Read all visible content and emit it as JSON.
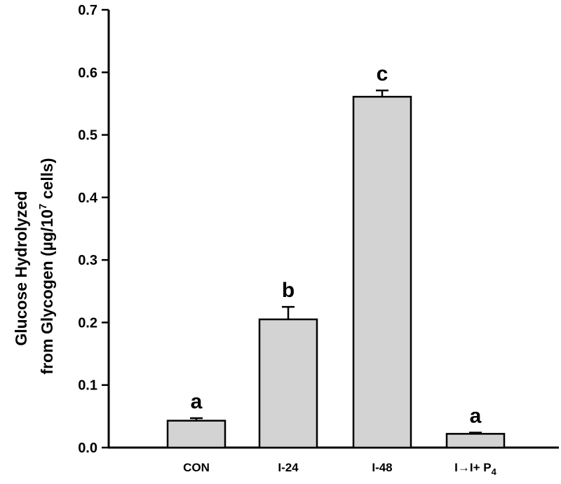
{
  "chart_data": {
    "type": "bar",
    "title": "",
    "xlabel": "",
    "ylabel_line1": "Glucose Hydrolyzed",
    "ylabel_line2_prefix": "from Glycogen (µg/10",
    "ylabel_line2_exponent": "7",
    "ylabel_line2_suffix": " cells)",
    "ylim": [
      0,
      0.7
    ],
    "yticks": [
      "0.0",
      "0.1",
      "0.2",
      "0.3",
      "0.4",
      "0.5",
      "0.6",
      "0.7"
    ],
    "categories": [
      {
        "label": "CON",
        "label_suffix": "",
        "label_subscript": ""
      },
      {
        "label": "I-24",
        "label_suffix": "",
        "label_subscript": ""
      },
      {
        "label": "I-48",
        "label_suffix": "",
        "label_subscript": ""
      },
      {
        "label": "I→I+ P",
        "label_suffix": "",
        "label_subscript": "4"
      }
    ],
    "values": [
      0.043,
      0.205,
      0.561,
      0.022
    ],
    "errors": [
      0.004,
      0.02,
      0.01,
      0.002
    ],
    "significance_letters": [
      "a",
      "b",
      "c",
      "a"
    ],
    "bar_color": "#d3d3d3",
    "grid": false,
    "legend": "none"
  }
}
